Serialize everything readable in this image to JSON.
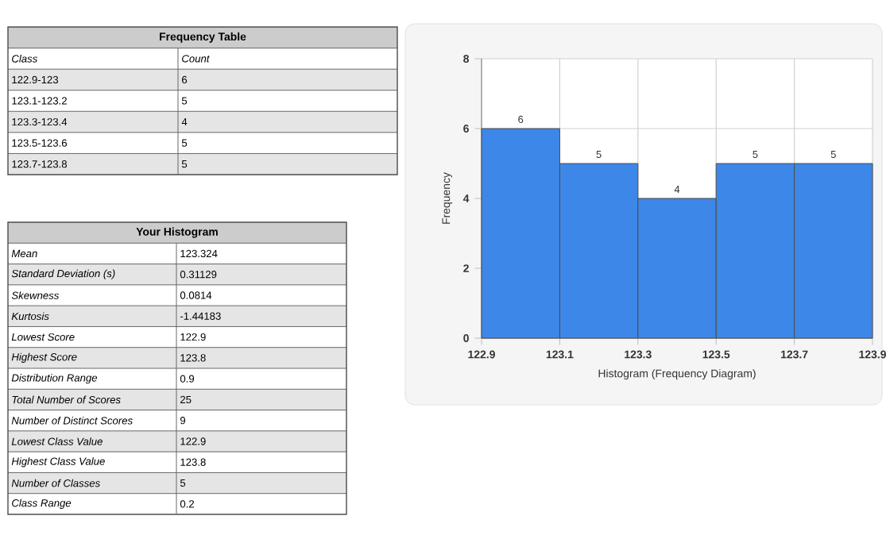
{
  "chart_data": [
    {
      "type": "other",
      "title": "Frequency Table",
      "annotations": [
        "Class",
        "Count",
        "122.9-123",
        "6",
        "123.1-123.2",
        "5",
        "123.3-123.4",
        "4",
        "123.5-123.6",
        "5",
        "123.7-123.8",
        "5"
      ]
    },
    {
      "type": "other",
      "title": "Your Histogram",
      "annotations": [
        "Mean",
        "123.324",
        "Standard Deviation (s)",
        "0.31129",
        "Skewness",
        "0.0814",
        "Kurtosis",
        "-1.44183",
        "Lowest Score",
        "122.9",
        "Highest Score",
        "123.8",
        "Distribution Range",
        "0.9",
        "Total Number of Scores",
        "25",
        "Number of Distinct Scores",
        "9",
        "Lowest Class Value",
        "122.9",
        "Highest Class Value",
        "123.8",
        "Number of Classes",
        "5",
        "Class Range",
        "0.2"
      ]
    },
    {
      "type": "histogram",
      "xlabel": "Histogram (Frequency Diagram)",
      "ylabel": "Frequency",
      "bins": [
        122.9,
        123.1,
        123.3,
        123.5,
        123.7,
        123.9
      ],
      "values": [
        6,
        5,
        4,
        5,
        5
      ],
      "color": "#3d87e8",
      "xlim": [
        122.9,
        123.9
      ],
      "ylim": [
        0,
        8
      ],
      "xticks": [
        122.9,
        123.1,
        123.3,
        123.5,
        123.7,
        123.9
      ],
      "yticks": [
        0,
        2,
        4,
        6,
        8
      ],
      "grid": true,
      "data_labels": true
    }
  ]
}
